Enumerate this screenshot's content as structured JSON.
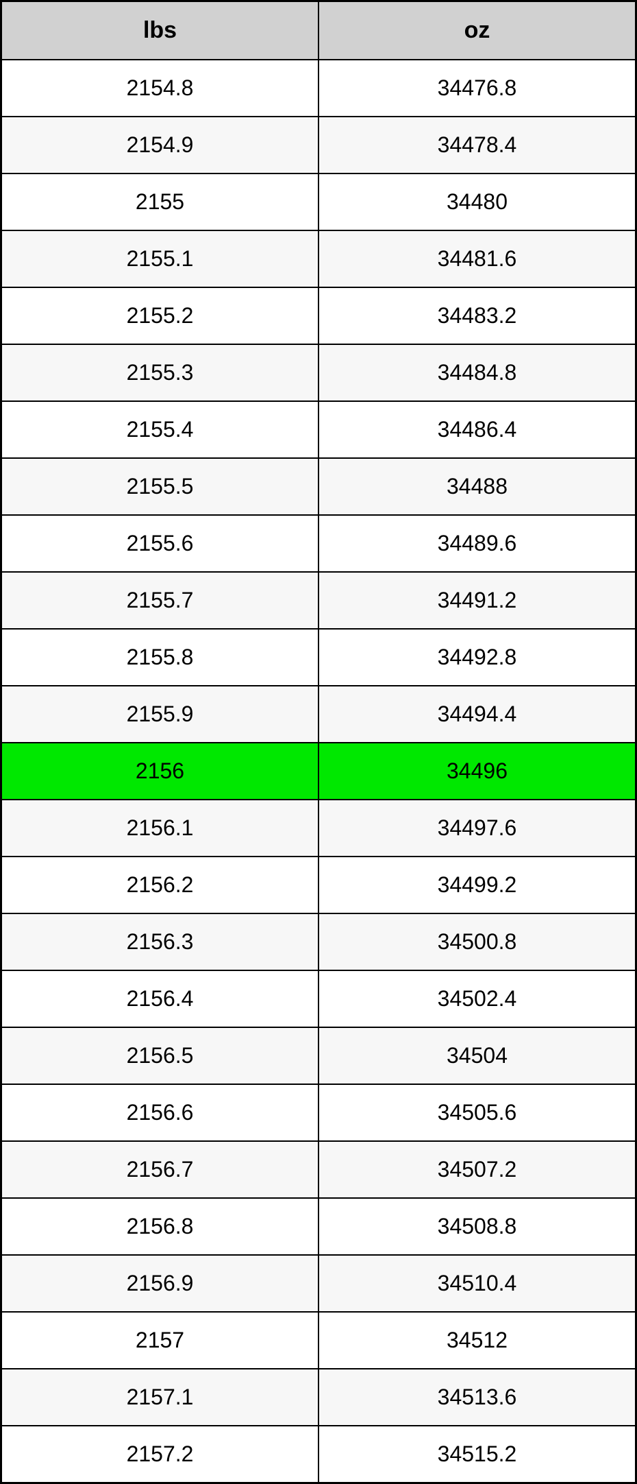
{
  "table": {
    "columns": [
      "lbs",
      "oz"
    ],
    "header_bg": "#d1d1d1",
    "header_fontsize": 34,
    "cell_fontsize": 32,
    "row_alt_bg_even": "#ffffff",
    "row_alt_bg_odd": "#f7f7f7",
    "highlight_bg": "#00e800",
    "text_color": "#000000",
    "border_color": "#000000",
    "rows": [
      {
        "lbs": "2154.8",
        "oz": "34476.8",
        "highlight": false
      },
      {
        "lbs": "2154.9",
        "oz": "34478.4",
        "highlight": false
      },
      {
        "lbs": "2155",
        "oz": "34480",
        "highlight": false
      },
      {
        "lbs": "2155.1",
        "oz": "34481.6",
        "highlight": false
      },
      {
        "lbs": "2155.2",
        "oz": "34483.2",
        "highlight": false
      },
      {
        "lbs": "2155.3",
        "oz": "34484.8",
        "highlight": false
      },
      {
        "lbs": "2155.4",
        "oz": "34486.4",
        "highlight": false
      },
      {
        "lbs": "2155.5",
        "oz": "34488",
        "highlight": false
      },
      {
        "lbs": "2155.6",
        "oz": "34489.6",
        "highlight": false
      },
      {
        "lbs": "2155.7",
        "oz": "34491.2",
        "highlight": false
      },
      {
        "lbs": "2155.8",
        "oz": "34492.8",
        "highlight": false
      },
      {
        "lbs": "2155.9",
        "oz": "34494.4",
        "highlight": false
      },
      {
        "lbs": "2156",
        "oz": "34496",
        "highlight": true
      },
      {
        "lbs": "2156.1",
        "oz": "34497.6",
        "highlight": false
      },
      {
        "lbs": "2156.2",
        "oz": "34499.2",
        "highlight": false
      },
      {
        "lbs": "2156.3",
        "oz": "34500.8",
        "highlight": false
      },
      {
        "lbs": "2156.4",
        "oz": "34502.4",
        "highlight": false
      },
      {
        "lbs": "2156.5",
        "oz": "34504",
        "highlight": false
      },
      {
        "lbs": "2156.6",
        "oz": "34505.6",
        "highlight": false
      },
      {
        "lbs": "2156.7",
        "oz": "34507.2",
        "highlight": false
      },
      {
        "lbs": "2156.8",
        "oz": "34508.8",
        "highlight": false
      },
      {
        "lbs": "2156.9",
        "oz": "34510.4",
        "highlight": false
      },
      {
        "lbs": "2157",
        "oz": "34512",
        "highlight": false
      },
      {
        "lbs": "2157.1",
        "oz": "34513.6",
        "highlight": false
      },
      {
        "lbs": "2157.2",
        "oz": "34515.2",
        "highlight": false
      }
    ]
  }
}
